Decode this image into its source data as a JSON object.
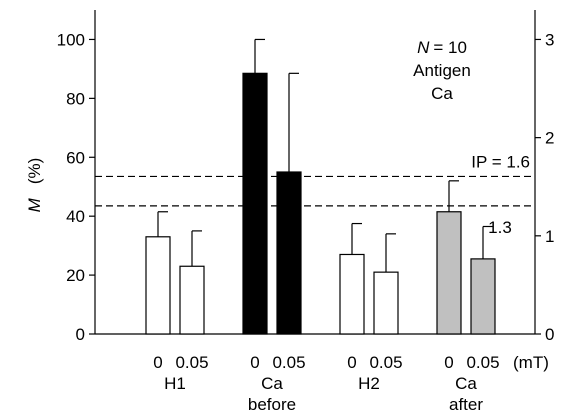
{
  "chart_data": {
    "type": "bar",
    "ylabel_symbol": "M",
    "ylabel_unit": "(%)",
    "ylim": [
      0,
      110
    ],
    "y_ticks": [
      "0",
      "20",
      "40",
      "60",
      "80",
      "100"
    ],
    "y2_ticks": [
      "0",
      "1",
      "2",
      "3"
    ],
    "y2lim": [
      0,
      3.3
    ],
    "x_unit": "(mT)",
    "groups": [
      {
        "name": "H1",
        "sub": "",
        "color": "#ffffff",
        "bars": [
          {
            "field": "0",
            "value": 33,
            "error": 8.5
          },
          {
            "field": "0.05",
            "value": 23,
            "error": 12
          }
        ]
      },
      {
        "name": "Ca",
        "sub": "before",
        "color": "#000000",
        "bars": [
          {
            "field": "0",
            "value": 88.5,
            "error": 11.5
          },
          {
            "field": "0.05",
            "value": 55,
            "error": 33.5
          }
        ]
      },
      {
        "name": "H2",
        "sub": "",
        "color": "#ffffff",
        "bars": [
          {
            "field": "0",
            "value": 27,
            "error": 10.5
          },
          {
            "field": "0.05",
            "value": 21,
            "error": 13
          }
        ]
      },
      {
        "name": "Ca",
        "sub": "after",
        "color": "#c0c0c0",
        "bars": [
          {
            "field": "0",
            "value": 41.5,
            "error": 10.5
          },
          {
            "field": "0.05",
            "value": 25.5,
            "error": 11
          }
        ]
      }
    ],
    "reference_lines": [
      {
        "value": 53.5,
        "label": "IP = 1.6"
      },
      {
        "value": 43.5,
        "label": "1.3"
      }
    ],
    "annotation": {
      "n_symbol": "N",
      "n_value": "= 10",
      "line2": "Antigen",
      "line3": "Ca"
    }
  }
}
